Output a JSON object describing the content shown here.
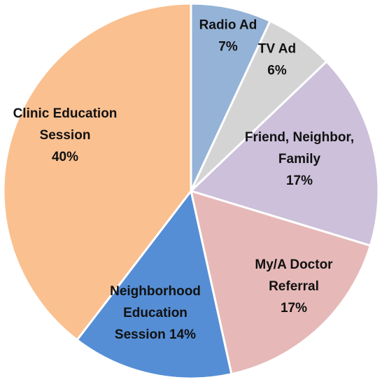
{
  "chart_data": {
    "type": "pie",
    "start_angle_deg": 0,
    "direction": "clockwise",
    "legend": "none",
    "slices": [
      {
        "label": "Radio Ad",
        "value": 7,
        "percent_label": "7%",
        "color": "#95B3D7",
        "label_lines": [
          "Radio Ad",
          "7%"
        ]
      },
      {
        "label": "TV Ad",
        "value": 6,
        "percent_label": "6%",
        "color": "#D4D4D4",
        "label_lines": [
          "TV Ad",
          "6%"
        ]
      },
      {
        "label": "Friend, Neighbor, Family",
        "value": 17,
        "percent_label": "17%",
        "color": "#CCC0DA",
        "label_lines": [
          "Friend, Neighbor,",
          "Family",
          "17%"
        ]
      },
      {
        "label": "My/A Doctor Referral",
        "value": 17,
        "percent_label": "17%",
        "color": "#E6B9B8",
        "label_lines": [
          "My/A Doctor",
          "Referral",
          "17%"
        ]
      },
      {
        "label": "Neighborhood Education Session",
        "value": 14,
        "percent_label": "14%",
        "color": "#558ED5",
        "label_lines": [
          "Neighborhood",
          "Education",
          "Session 14%"
        ]
      },
      {
        "label": "Clinic Education Session",
        "value": 40,
        "percent_label": "40%",
        "color": "#FAC090",
        "label_lines": [
          "Clinic Education",
          "Session",
          "40%"
        ]
      }
    ]
  }
}
